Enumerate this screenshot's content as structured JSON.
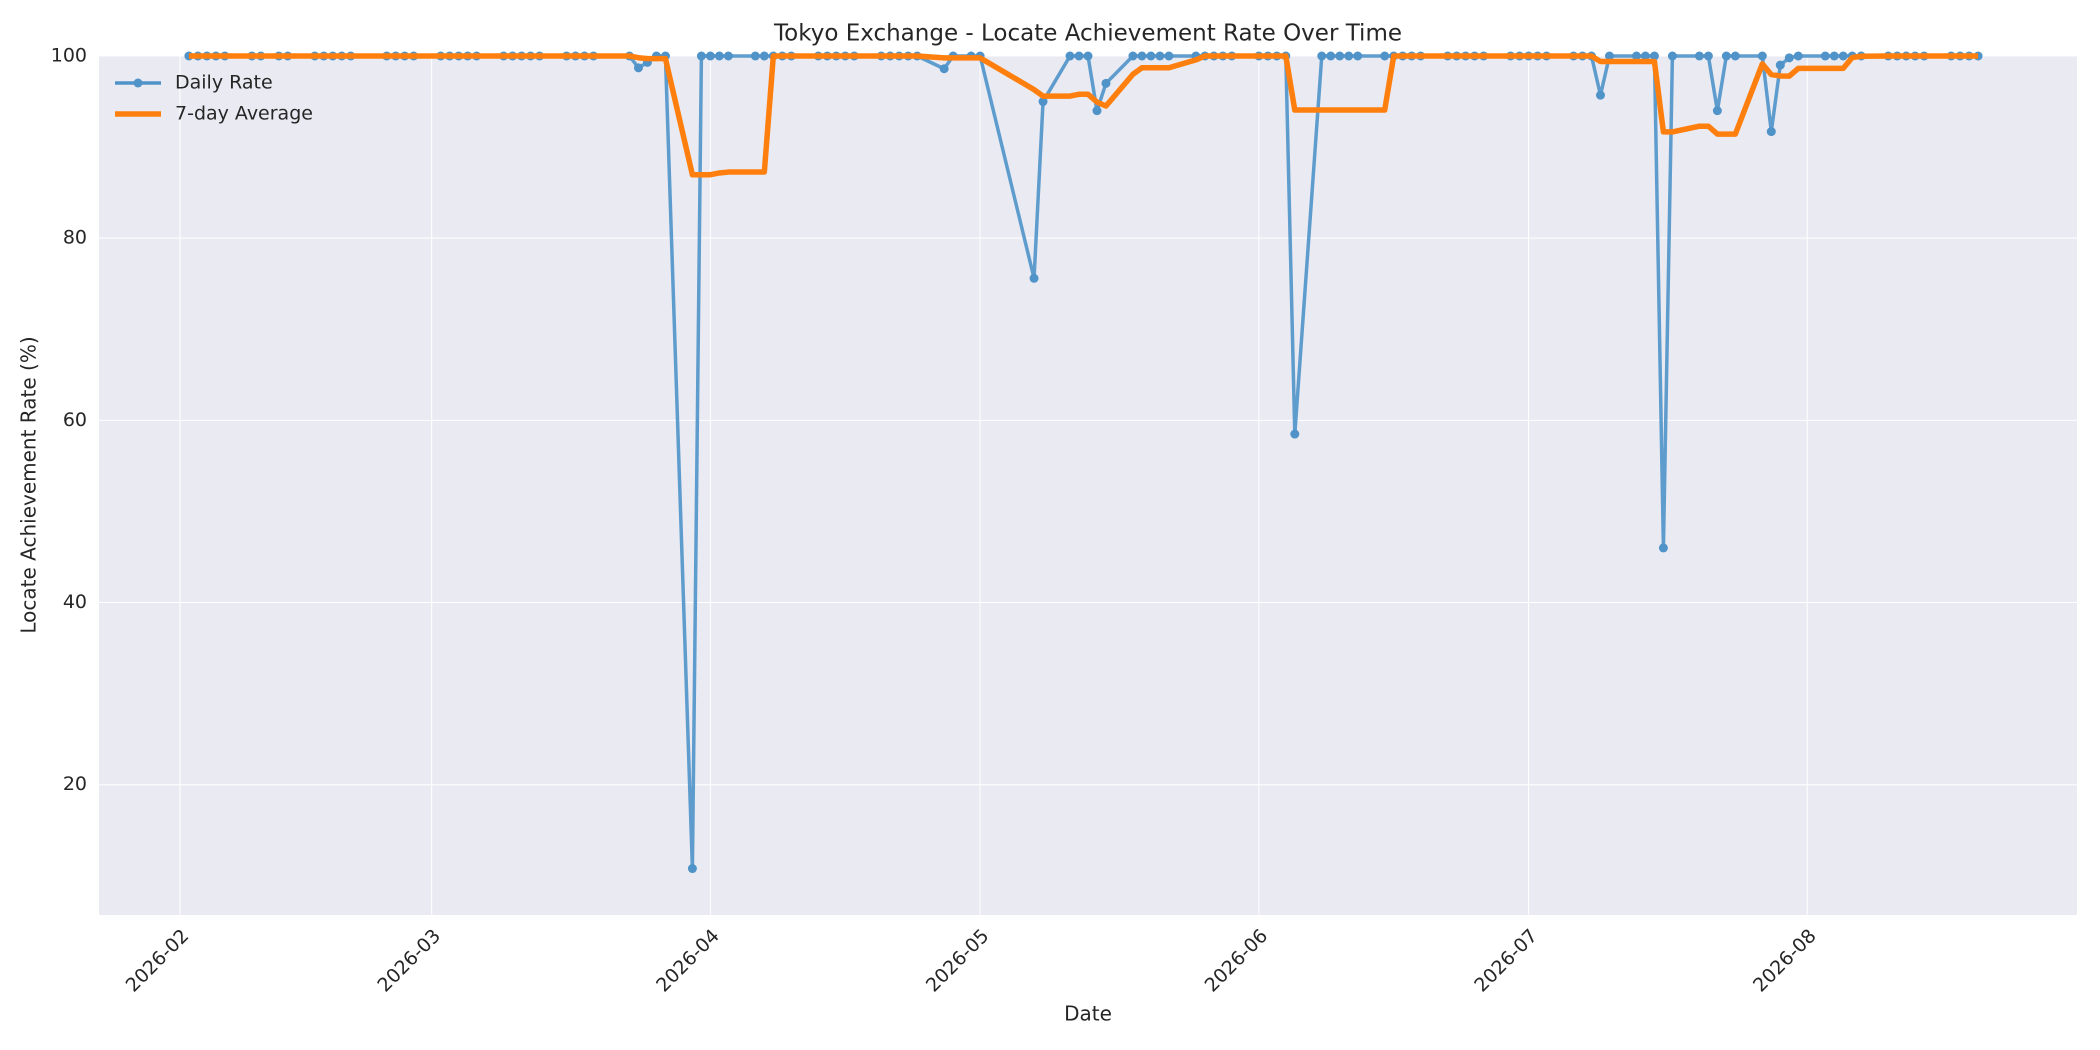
{
  "chart_data": {
    "type": "line",
    "title": "Tokyo Exchange - Locate Achievement Rate Over Time",
    "x_label": "Date",
    "y_label": "Locate Achievement Rate (%)",
    "x": [
      "2026-02-02",
      "2026-02-03",
      "2026-02-04",
      "2026-02-05",
      "2026-02-06",
      "2026-02-09",
      "2026-02-10",
      "2026-02-12",
      "2026-02-13",
      "2026-02-16",
      "2026-02-17",
      "2026-02-18",
      "2026-02-19",
      "2026-02-20",
      "2026-02-24",
      "2026-02-25",
      "2026-02-26",
      "2026-02-27",
      "2026-03-02",
      "2026-03-03",
      "2026-03-04",
      "2026-03-05",
      "2026-03-06",
      "2026-03-09",
      "2026-03-10",
      "2026-03-11",
      "2026-03-12",
      "2026-03-13",
      "2026-03-16",
      "2026-03-17",
      "2026-03-18",
      "2026-03-19",
      "2026-03-23",
      "2026-03-24",
      "2026-03-25",
      "2026-03-26",
      "2026-03-27",
      "2026-03-30",
      "2026-03-31",
      "2026-04-01",
      "2026-04-02",
      "2026-04-03",
      "2026-04-06",
      "2026-04-07",
      "2026-04-08",
      "2026-04-09",
      "2026-04-10",
      "2026-04-13",
      "2026-04-14",
      "2026-04-15",
      "2026-04-16",
      "2026-04-17",
      "2026-04-20",
      "2026-04-21",
      "2026-04-22",
      "2026-04-23",
      "2026-04-24",
      "2026-04-27",
      "2026-04-28",
      "2026-04-30",
      "2026-05-01",
      "2026-05-07",
      "2026-05-08",
      "2026-05-11",
      "2026-05-12",
      "2026-05-13",
      "2026-05-14",
      "2026-05-15",
      "2026-05-18",
      "2026-05-19",
      "2026-05-20",
      "2026-05-21",
      "2026-05-22",
      "2026-05-25",
      "2026-05-26",
      "2026-05-27",
      "2026-05-28",
      "2026-05-29",
      "2026-06-01",
      "2026-06-02",
      "2026-06-03",
      "2026-06-04",
      "2026-06-05",
      "2026-06-08",
      "2026-06-09",
      "2026-06-10",
      "2026-06-11",
      "2026-06-12",
      "2026-06-15",
      "2026-06-16",
      "2026-06-17",
      "2026-06-18",
      "2026-06-19",
      "2026-06-22",
      "2026-06-23",
      "2026-06-24",
      "2026-06-25",
      "2026-06-26",
      "2026-06-29",
      "2026-06-30",
      "2026-07-01",
      "2026-07-02",
      "2026-07-03",
      "2026-07-06",
      "2026-07-07",
      "2026-07-08",
      "2026-07-09",
      "2026-07-10",
      "2026-07-13",
      "2026-07-14",
      "2026-07-15",
      "2026-07-16",
      "2026-07-17",
      "2026-07-20",
      "2026-07-21",
      "2026-07-22",
      "2026-07-23",
      "2026-07-24",
      "2026-07-27",
      "2026-07-28",
      "2026-07-29",
      "2026-07-30",
      "2026-07-31",
      "2026-08-03",
      "2026-08-04",
      "2026-08-05",
      "2026-08-06",
      "2026-08-07",
      "2026-08-10",
      "2026-08-11",
      "2026-08-12",
      "2026-08-13",
      "2026-08-14",
      "2026-08-17",
      "2026-08-18",
      "2026-08-19",
      "2026-08-20"
    ],
    "series": [
      {
        "name": "Daily Rate",
        "color": "#4f93c9",
        "linewidth": 3.5,
        "markers": true,
        "values": [
          100,
          100,
          100,
          100,
          100,
          100,
          100,
          100,
          100,
          100,
          100,
          100,
          100,
          100,
          100,
          100,
          100,
          100,
          100,
          100,
          100,
          100,
          100,
          100,
          100,
          100,
          100,
          100,
          100,
          100,
          100,
          100,
          100,
          98.7,
          99.3,
          100,
          100,
          10.8,
          100,
          100,
          100,
          100,
          100,
          100,
          100,
          100,
          100,
          100,
          100,
          100,
          100,
          100,
          100,
          100,
          100,
          100,
          100,
          98.6,
          100,
          100,
          100,
          75.6,
          95,
          100,
          100,
          100,
          94,
          97,
          100,
          100,
          100,
          100,
          100,
          100,
          100,
          100,
          100,
          100,
          100,
          100,
          100,
          100,
          58.5,
          100,
          100,
          100,
          100,
          100,
          100,
          100,
          100,
          100,
          100,
          100,
          100,
          100,
          100,
          100,
          100,
          100,
          100,
          100,
          100,
          100,
          100,
          100,
          95.7,
          100,
          100,
          100,
          100,
          46,
          100,
          100,
          100,
          94,
          100,
          100,
          100,
          91.7,
          99,
          99.8,
          100,
          100,
          100,
          100,
          100,
          100,
          100,
          100,
          100,
          100,
          100,
          100,
          100,
          100,
          100
        ]
      },
      {
        "name": "7-day Average",
        "color": "#ff7f0e",
        "linewidth": 5.5,
        "markers": false,
        "values": [
          100,
          100,
          100,
          100,
          100,
          100,
          100,
          100,
          100,
          100,
          100,
          100,
          100,
          100,
          100,
          100,
          100,
          100,
          100,
          100,
          100,
          100,
          100,
          100,
          100,
          100,
          100,
          100,
          100,
          100,
          100,
          100,
          100,
          99.81,
          99.71,
          99.71,
          99.71,
          86.97,
          86.97,
          86.97,
          87.16,
          87.26,
          87.26,
          87.26,
          100,
          100,
          100,
          100,
          100,
          100,
          100,
          100,
          100,
          100,
          100,
          100,
          100,
          99.8,
          99.8,
          99.8,
          99.8,
          96.31,
          95.6,
          95.6,
          95.8,
          95.8,
          94.94,
          94.51,
          98,
          98.71,
          98.71,
          98.71,
          98.71,
          99.57,
          100,
          100,
          100,
          100,
          100,
          100,
          100,
          100,
          94.07,
          94.07,
          94.07,
          94.07,
          94.07,
          94.07,
          94.07,
          100,
          100,
          100,
          100,
          100,
          100,
          100,
          100,
          100,
          100,
          100,
          100,
          100,
          100,
          100,
          100,
          100,
          99.39,
          99.39,
          99.39,
          99.39,
          99.39,
          91.67,
          91.67,
          92.29,
          92.29,
          91.43,
          91.43,
          91.43,
          99.14,
          97.96,
          97.81,
          97.79,
          98.64,
          98.64,
          98.64,
          98.64,
          99.83,
          99.97,
          100,
          100,
          100,
          100,
          100,
          100,
          100,
          100,
          100
        ]
      }
    ],
    "xlim": [
      "2026-01-23",
      "2026-08-31"
    ],
    "xticks": [
      {
        "value": "2026-02-01",
        "label": "2026-02"
      },
      {
        "value": "2026-03-01",
        "label": "2026-03"
      },
      {
        "value": "2026-04-01",
        "label": "2026-04"
      },
      {
        "value": "2026-05-01",
        "label": "2026-05"
      },
      {
        "value": "2026-06-01",
        "label": "2026-06"
      },
      {
        "value": "2026-07-01",
        "label": "2026-07"
      },
      {
        "value": "2026-08-01",
        "label": "2026-08"
      }
    ],
    "ylim": [
      5.7,
      100
    ],
    "yticks": [
      20,
      40,
      60,
      80,
      100
    ],
    "grid": true,
    "legend": "upper left"
  }
}
